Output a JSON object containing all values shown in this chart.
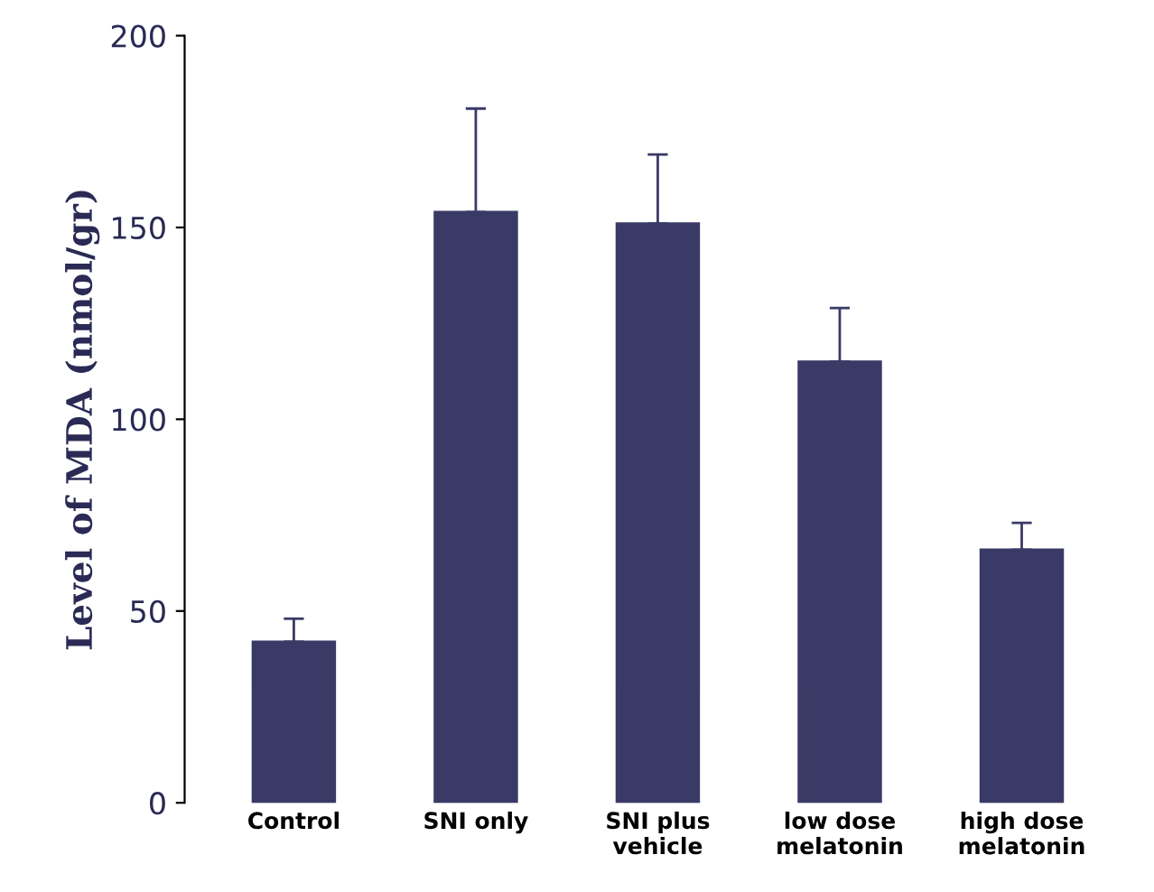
{
  "chart_data": {
    "type": "bar",
    "ylabel": "Level of MDA (nmol/gr)",
    "categories": [
      "Control",
      "SNI only",
      "SNI plus\nvehicle",
      "low dose\nmelatonin",
      "high dose\nmelatonin"
    ],
    "values": [
      42,
      154,
      151,
      115,
      66
    ],
    "errors": [
      [
        42,
        48
      ],
      [
        154,
        181
      ],
      [
        151,
        169
      ],
      [
        115,
        129
      ],
      [
        66,
        73
      ]
    ],
    "color": "#3a3a66",
    "ylim": [
      0,
      200
    ],
    "yticks": [
      0,
      50,
      100,
      150,
      200
    ],
    "grid": false,
    "legend": false
  }
}
